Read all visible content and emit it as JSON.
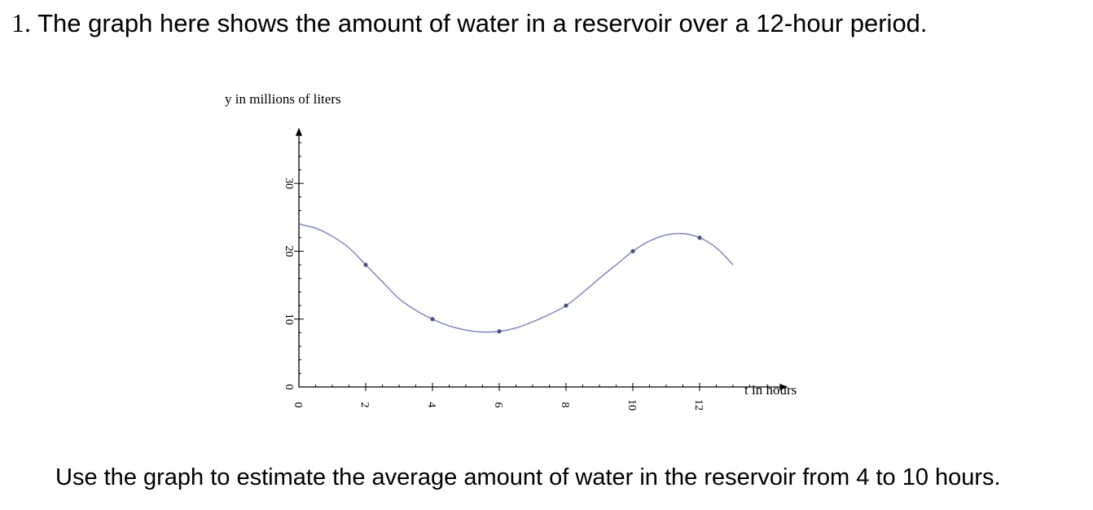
{
  "question": {
    "number": "1.",
    "text": "The graph here shows the amount of water in a reservoir over a 12-hour period."
  },
  "prompt": "Use the graph to estimate the average amount of water in the reservoir from 4 to 10 hours.",
  "colors": {
    "curve": "#7a80b8",
    "points": "#4a5088",
    "axes": "#000000"
  },
  "chart_data": {
    "type": "line",
    "title": "",
    "xlabel": "t in hours",
    "ylabel": "y in millions of liters",
    "xlim": [
      0,
      14.4
    ],
    "ylim": [
      0,
      37
    ],
    "x_ticks": [
      0,
      2,
      4,
      6,
      8,
      10,
      12
    ],
    "y_ticks": [
      0,
      10,
      20,
      30
    ],
    "grid": false,
    "series": [
      {
        "x": [
          0,
          0.5,
          1,
          1.5,
          2,
          2.5,
          3,
          3.5,
          4,
          4.5,
          5,
          5.5,
          6,
          6.5,
          7,
          7.5,
          8,
          8.5,
          9,
          9.5,
          10,
          10.5,
          11,
          11.5,
          12,
          12.5,
          13
        ],
        "y": [
          24,
          23.4,
          22.2,
          20.5,
          18,
          15.5,
          13,
          11.3,
          10,
          9,
          8.4,
          8.1,
          8.2,
          8.7,
          9.6,
          10.7,
          12,
          13.9,
          16,
          18,
          20,
          21.5,
          22.4,
          22.6,
          22,
          20.5,
          18
        ]
      }
    ],
    "marked_points": {
      "x": [
        2,
        4,
        6,
        8,
        10,
        12
      ],
      "y": [
        18,
        10,
        8.2,
        12,
        20,
        22
      ]
    }
  }
}
